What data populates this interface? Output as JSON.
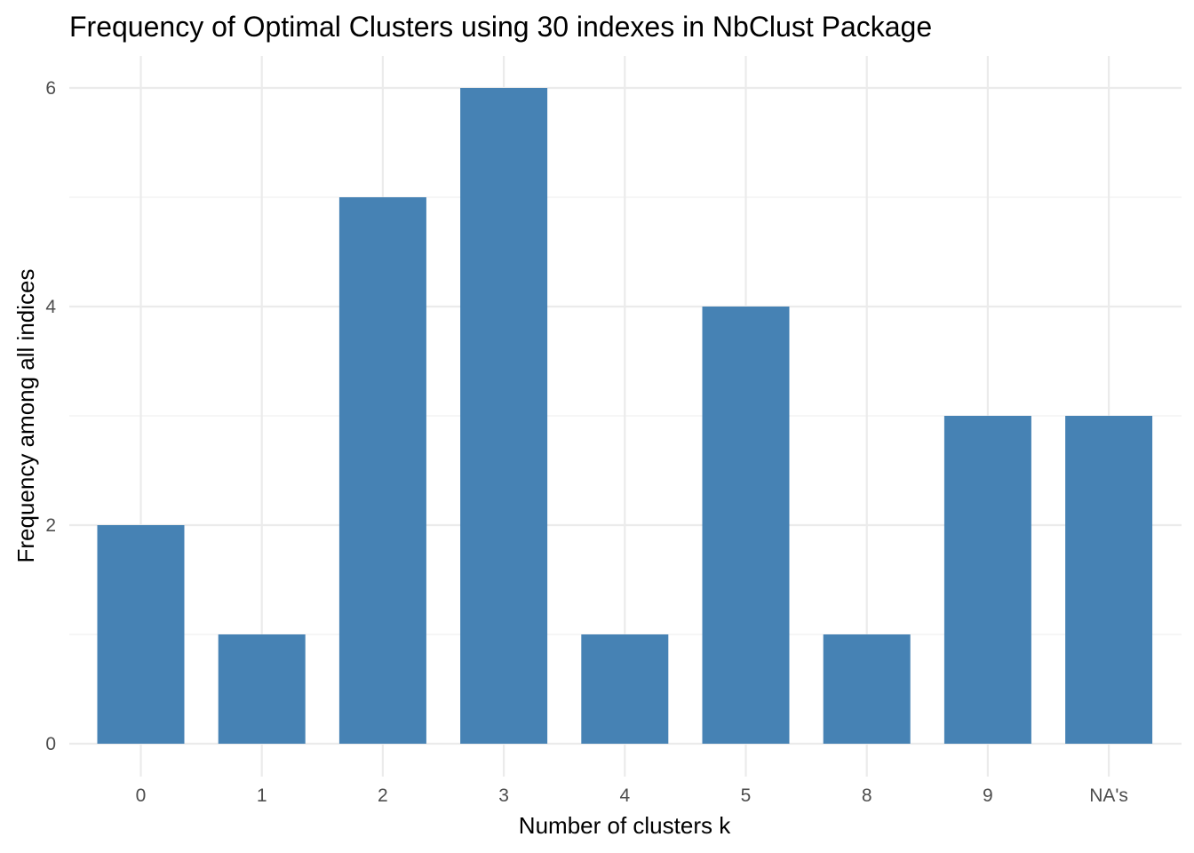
{
  "chart_data": {
    "type": "bar",
    "title": "Frequency of Optimal Clusters using 30 indexes in NbClust Package",
    "xlabel": "Number of clusters k",
    "ylabel": "Frequency among all indices",
    "categories": [
      "0",
      "1",
      "2",
      "3",
      "4",
      "5",
      "8",
      "9",
      "NA's"
    ],
    "values": [
      2,
      1,
      5,
      6,
      1,
      4,
      1,
      3,
      3
    ],
    "y_ticks": [
      "0",
      "2",
      "4",
      "6"
    ],
    "ylim": [
      0,
      6
    ],
    "grid": true,
    "legend": "none",
    "colors": {
      "bar": "#4682b4",
      "grid": "#ebebeb",
      "tick_text": "#4d4d4d"
    }
  }
}
